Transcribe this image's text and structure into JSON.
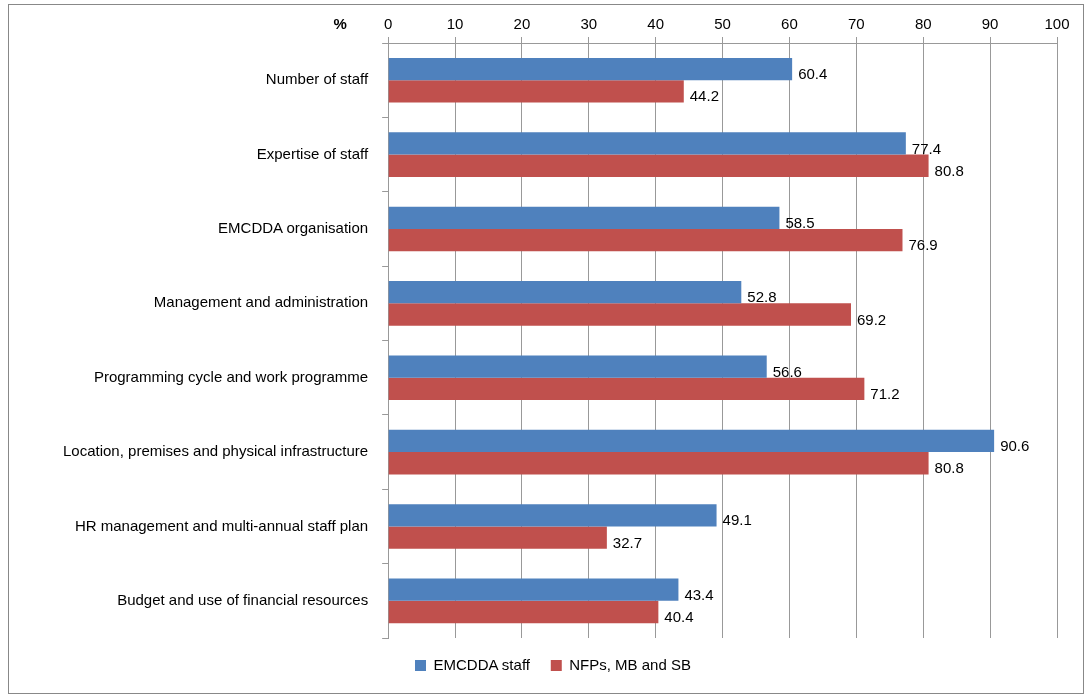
{
  "chart_data": {
    "type": "bar",
    "orientation": "horizontal",
    "xlabel": "%",
    "categories": [
      "Number of staff",
      "Expertise of staff",
      "EMCDDA organisation",
      "Management and administration",
      "Programming cycle and work programme",
      "Location, premises and physical infrastructure",
      "HR management and multi-annual staff plan",
      "Budget and use of financial resources"
    ],
    "series": [
      {
        "name": "EMCDDA staff",
        "color": "#4f81bd",
        "values": [
          60.4,
          77.4,
          58.5,
          52.8,
          56.6,
          90.6,
          49.1,
          43.4
        ]
      },
      {
        "name": "NFPs, MB and SB",
        "color": "#c0504d",
        "values": [
          44.2,
          80.8,
          76.9,
          69.2,
          71.2,
          80.8,
          32.7,
          40.4
        ]
      }
    ],
    "xlim": [
      0,
      100
    ],
    "xticks": [
      0,
      10,
      20,
      30,
      40,
      50,
      60,
      70,
      80,
      90,
      100
    ],
    "grid": "x",
    "legend": "bottom",
    "data_labels": true
  }
}
